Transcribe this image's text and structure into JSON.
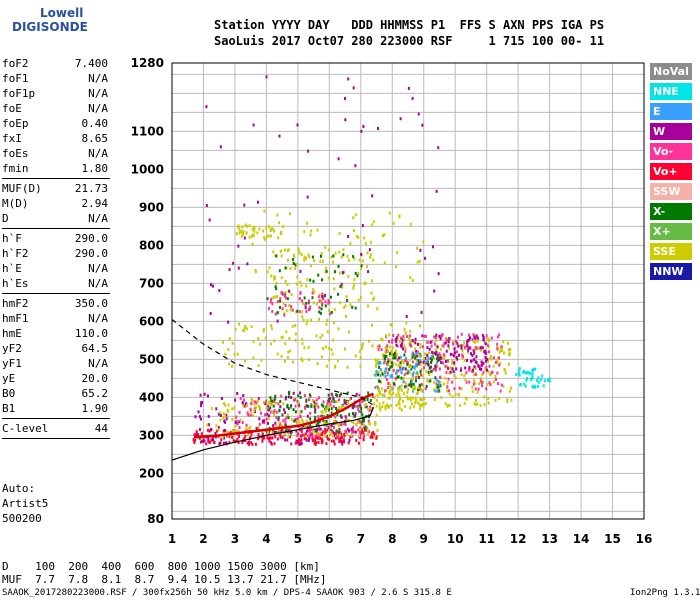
{
  "logo": {
    "line1": "Lowell",
    "line2": "DIGISONDE"
  },
  "header": {
    "line1": "Station YYYY DAY   DDD HHMMSS P1  FFS S AXN PPS IGA PS",
    "line2": "SaoLuis 2017 Oct07 280 223000 RSF     1 715 100 00- 11"
  },
  "params": [
    {
      "k": "foF2",
      "v": "7.400"
    },
    {
      "k": "foF1",
      "v": "N/A"
    },
    {
      "k": "foF1p",
      "v": "N/A"
    },
    {
      "k": "foE",
      "v": "N/A"
    },
    {
      "k": "foEp",
      "v": "0.40"
    },
    {
      "k": "fxI",
      "v": "8.65"
    },
    {
      "k": "foEs",
      "v": "N/A"
    },
    {
      "k": "fmin",
      "v": "1.80",
      "sep": true
    },
    {
      "k": "MUF(D)",
      "v": "21.73"
    },
    {
      "k": "M(D)",
      "v": "2.94"
    },
    {
      "k": "D",
      "v": "N/A",
      "sep": true
    },
    {
      "k": "h`F",
      "v": "290.0"
    },
    {
      "k": "h`F2",
      "v": "290.0"
    },
    {
      "k": "h`E",
      "v": "N/A"
    },
    {
      "k": "h`Es",
      "v": "N/A",
      "sep": true
    },
    {
      "k": "hmF2",
      "v": "350.0"
    },
    {
      "k": "hmF1",
      "v": "N/A"
    },
    {
      "k": "hmE",
      "v": "110.0"
    },
    {
      "k": "yF2",
      "v": "64.5"
    },
    {
      "k": "yF1",
      "v": "N/A"
    },
    {
      "k": "yE",
      "v": "20.0"
    },
    {
      "k": "B0",
      "v": "65.2"
    },
    {
      "k": "B1",
      "v": "1.90",
      "sep": true
    },
    {
      "k": "C-level",
      "v": "44",
      "sep": true
    }
  ],
  "auto": {
    "l1": "Auto:",
    "l2": "Artist5",
    "l3": "500200"
  },
  "legend": [
    {
      "label": "NoVal",
      "color": "#8c8c8c"
    },
    {
      "label": "NNE",
      "color": "#00e5e5"
    },
    {
      "label": "E",
      "color": "#3aa0ff"
    },
    {
      "label": "W",
      "color": "#a8009a"
    },
    {
      "label": "Vo-",
      "color": "#ff3399"
    },
    {
      "label": "Vo+",
      "color": "#ff0033"
    },
    {
      "label": "SSW",
      "color": "#f5b0a8"
    },
    {
      "label": "X-",
      "color": "#007a00"
    },
    {
      "label": "X+",
      "color": "#66bb44"
    },
    {
      "label": "SSE",
      "color": "#cccc00"
    },
    {
      "label": "NNW",
      "color": "#1a1aaa"
    }
  ],
  "dmuf": {
    "d": "D    100  200  400  600  800 1000 1500 3000 [km]",
    "muf": "MUF  7.7  7.8  8.1  8.7  9.4 10.5 13.7 21.7 [MHz]"
  },
  "footer": {
    "left": "SAAOK_2017280223000.RSF / 300fx256h 50 kHz 5.0 km / DPS-4 SAAOK 903 / 2.6 S 315.8 E",
    "right": "Ion2Png 1.3.17"
  },
  "chart_data": {
    "type": "scatter",
    "xlim": [
      1,
      16
    ],
    "ylim": [
      80,
      1280
    ],
    "x_ticks": [
      1,
      2,
      3,
      4,
      5,
      6,
      7,
      8,
      9,
      10,
      11,
      12,
      13,
      14,
      15,
      16
    ],
    "y_ticks": [
      80,
      200,
      300,
      400,
      500,
      600,
      700,
      800,
      900,
      1000,
      1100,
      1280
    ],
    "grid": true,
    "profile": [
      [
        1,
        235
      ],
      [
        2,
        262
      ],
      [
        3,
        282
      ],
      [
        4,
        300
      ],
      [
        5,
        315
      ],
      [
        6,
        330
      ],
      [
        6.8,
        340
      ],
      [
        7.3,
        352
      ],
      [
        7.4,
        375
      ]
    ],
    "profile_dashed": [
      [
        1,
        605
      ],
      [
        2,
        540
      ],
      [
        3,
        490
      ],
      [
        4,
        460
      ],
      [
        5,
        440
      ],
      [
        6,
        420
      ],
      [
        7,
        400
      ],
      [
        7.4,
        380
      ]
    ],
    "trace_red": [
      [
        1.7,
        295
      ],
      [
        2,
        297
      ],
      [
        2.5,
        300
      ],
      [
        3,
        305
      ],
      [
        3.5,
        310
      ],
      [
        4,
        315
      ],
      [
        4.5,
        320
      ],
      [
        5,
        325
      ],
      [
        5.5,
        335
      ],
      [
        6,
        350
      ],
      [
        6.5,
        370
      ],
      [
        7,
        395
      ],
      [
        7.4,
        410
      ]
    ],
    "clusters": [
      {
        "color": "#ff0033",
        "x": [
          1.6,
          7.5
        ],
        "y": [
          280,
          320
        ],
        "n": 220
      },
      {
        "color": "#ff3399",
        "x": [
          3,
          7.4
        ],
        "y": [
          300,
          410
        ],
        "n": 180
      },
      {
        "color": "#007a00",
        "x": [
          4,
          7.3
        ],
        "y": [
          310,
          420
        ],
        "n": 120
      },
      {
        "color": "#a8009a",
        "x": [
          1.7,
          7
        ],
        "y": [
          280,
          420
        ],
        "n": 120
      },
      {
        "color": "#cccc00",
        "x": [
          2,
          7.5
        ],
        "y": [
          300,
          400
        ],
        "n": 150
      },
      {
        "color": "#cccc00",
        "x": [
          7.4,
          11.8
        ],
        "y": [
          380,
          560
        ],
        "n": 260
      },
      {
        "color": "#ff3399",
        "x": [
          7.5,
          11.5
        ],
        "y": [
          420,
          570
        ],
        "n": 160
      },
      {
        "color": "#a8009a",
        "x": [
          8,
          11
        ],
        "y": [
          470,
          570
        ],
        "n": 120
      },
      {
        "color": "#007a00",
        "x": [
          7.5,
          9.5
        ],
        "y": [
          420,
          520
        ],
        "n": 70
      },
      {
        "color": "#3aa0ff",
        "x": [
          7.4,
          9.5
        ],
        "y": [
          420,
          520
        ],
        "n": 50
      },
      {
        "color": "#00e5e5",
        "x": [
          11.8,
          13
        ],
        "y": [
          430,
          480
        ],
        "n": 40
      },
      {
        "color": "#cccc00",
        "x": [
          7.5,
          9
        ],
        "y": [
          370,
          430
        ],
        "n": 60
      },
      {
        "color": "#cccc00",
        "x": [
          4,
          7.5
        ],
        "y": [
          600,
          800
        ],
        "n": 120
      },
      {
        "color": "#007a00",
        "x": [
          4,
          7
        ],
        "y": [
          620,
          780
        ],
        "n": 50
      },
      {
        "color": "#ff3399",
        "x": [
          4,
          6
        ],
        "y": [
          620,
          680
        ],
        "n": 40
      },
      {
        "color": "#cccc00",
        "x": [
          2.5,
          9
        ],
        "y": [
          480,
          600
        ],
        "n": 120
      },
      {
        "color": "#cccc00",
        "x": [
          3,
          4.5
        ],
        "y": [
          820,
          860
        ],
        "n": 40
      },
      {
        "color": "#a8009a",
        "x": [
          2,
          9.5
        ],
        "y": [
          600,
          1250
        ],
        "n": 60
      },
      {
        "color": "#cccc00",
        "x": [
          3.5,
          9
        ],
        "y": [
          700,
          900
        ],
        "n": 60
      }
    ]
  }
}
